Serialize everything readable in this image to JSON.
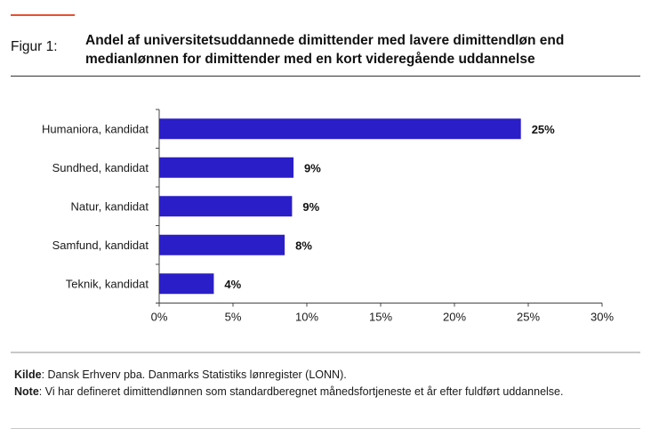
{
  "figure": {
    "label": "Figur 1:",
    "title": "Andel af universitetsuddannede dimittender med lavere dimittendløn end medianlønnen for dimittender med en kort videregående uddannelse",
    "accent_color": "#e8502e"
  },
  "notes": {
    "source_label": "Kilde",
    "source_text": ": Dansk Erhverv pba. Danmarks Statistiks lønregister (LONN).",
    "note_label": "Note",
    "note_text": ": Vi har defineret dimittendlønnen som standardberegnet månedsfortjeneste et år efter fuldført uddannelse."
  },
  "chart_data": {
    "type": "bar",
    "orientation": "horizontal",
    "categories": [
      "Humaniora, kandidat",
      "Sundhed, kandidat",
      "Natur, kandidat",
      "Samfund, kandidat",
      "Teknik, kandidat"
    ],
    "values": [
      24.5,
      9.1,
      9.0,
      8.5,
      3.7
    ],
    "data_labels": [
      "25%",
      "9%",
      "9%",
      "8%",
      "4%"
    ],
    "xlim": [
      0,
      30
    ],
    "xticks": [
      0,
      5,
      10,
      15,
      20,
      25,
      30
    ],
    "xtick_labels": [
      "0%",
      "5%",
      "10%",
      "15%",
      "20%",
      "25%",
      "30%"
    ],
    "bar_color": "#2a1ec8",
    "grid": false,
    "legend": "none"
  }
}
